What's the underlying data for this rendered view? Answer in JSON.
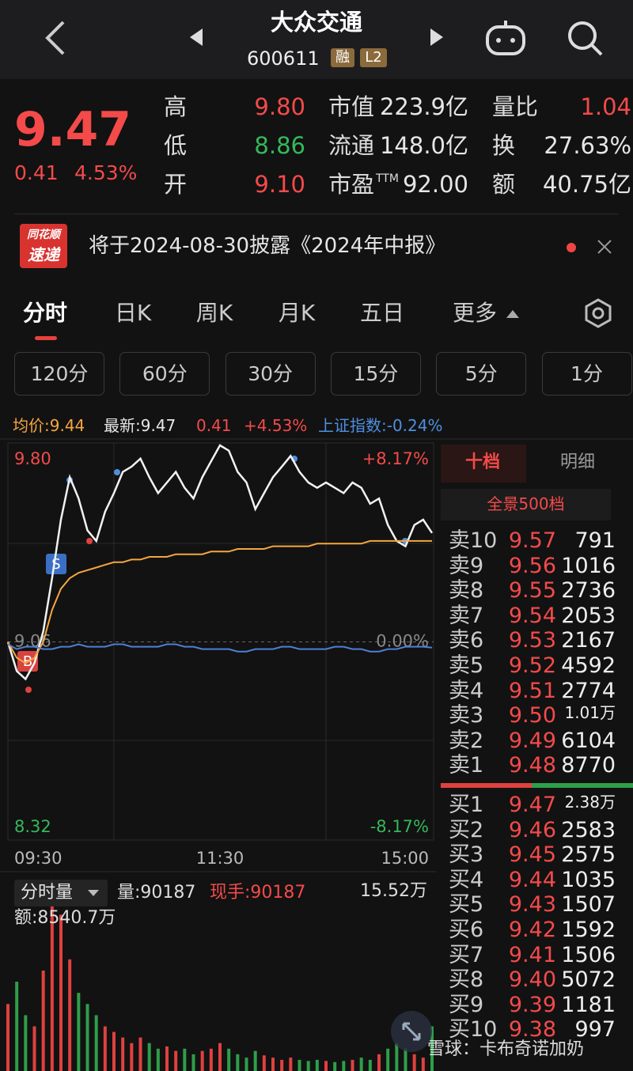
{
  "header": {
    "title": "大众交通",
    "code": "600611",
    "badges": [
      "融",
      "L2"
    ]
  },
  "quote": {
    "price": "9.47",
    "change": "0.41",
    "change_pct": "4.53%"
  },
  "stats": [
    {
      "label": "高",
      "value": "9.80",
      "color": "#f44a4a"
    },
    {
      "label": "低",
      "value": "8.86",
      "color": "#35b85a"
    },
    {
      "label": "开",
      "value": "9.10",
      "color": "#f44a4a"
    },
    {
      "label": "市值",
      "value": "223.9亿",
      "color": "#e6e6e6"
    },
    {
      "label": "流通",
      "value": "148.0亿",
      "color": "#e6e6e6"
    },
    {
      "label": "市盈",
      "sup": "TTM",
      "value": "92.00",
      "color": "#e6e6e6"
    },
    {
      "label": "量比",
      "value": "1.04",
      "color": "#f44a4a"
    },
    {
      "label": "换",
      "value": "27.63%",
      "color": "#e6e6e6"
    },
    {
      "label": "额",
      "value": "40.75亿",
      "color": "#e6e6e6"
    }
  ],
  "notice": {
    "logo_top": "同花顺",
    "logo_bottom": "速递",
    "text": "将于2024-08-30披露《2024年中报》"
  },
  "tabs": [
    "分时",
    "日K",
    "周K",
    "月K",
    "五日",
    "更多"
  ],
  "periods": [
    "120分",
    "60分",
    "30分",
    "15分",
    "5分",
    "1分"
  ],
  "info_bar": {
    "avg": "均价:9.44",
    "latest": "最新:9.47",
    "change": "0.41",
    "change_pct": "+4.53%",
    "index": "上证指数:-0.24%"
  },
  "chart_data": [
    {
      "type": "line",
      "x": [
        0,
        5,
        10,
        15,
        20,
        25,
        30,
        35,
        40,
        45,
        50,
        55,
        60,
        65,
        70,
        75,
        80,
        85,
        90,
        95,
        100,
        105,
        110,
        115,
        120,
        125,
        130,
        135,
        140,
        145,
        150,
        155,
        160,
        165,
        170,
        175,
        180,
        185,
        190,
        195,
        200,
        205,
        210,
        215,
        220,
        225,
        230,
        235,
        240
      ],
      "xlim": [
        0,
        240
      ],
      "xticks": [
        {
          "value": 0,
          "label": "09:30"
        },
        {
          "value": 120,
          "label": "11:30"
        },
        {
          "value": 240,
          "label": "15:00"
        }
      ],
      "ylim": [
        8.32,
        9.8
      ],
      "yticks": [
        {
          "value": 9.8,
          "label": "9.80"
        },
        {
          "value": 9.06,
          "label": "9.06"
        },
        {
          "value": 8.32,
          "label": "8.32"
        }
      ],
      "y2lim": [
        -8.17,
        8.17
      ],
      "y2ticks": [
        {
          "value": 8.17,
          "label": "+8.17%"
        },
        {
          "value": 0,
          "label": "0.00%"
        },
        {
          "value": -8.17,
          "label": "-8.17%"
        }
      ],
      "series": [
        {
          "color": "#f2f2f2",
          "values": [
            9.06,
            8.95,
            8.92,
            8.98,
            9.1,
            9.3,
            9.52,
            9.68,
            9.6,
            9.48,
            9.44,
            9.55,
            9.62,
            9.7,
            9.72,
            9.75,
            9.68,
            9.62,
            9.66,
            9.7,
            9.64,
            9.6,
            9.68,
            9.74,
            9.8,
            9.78,
            9.7,
            9.66,
            9.56,
            9.62,
            9.68,
            9.72,
            9.76,
            9.7,
            9.66,
            9.64,
            9.66,
            9.64,
            9.62,
            9.66,
            9.64,
            9.58,
            9.6,
            9.5,
            9.44,
            9.42,
            9.5,
            9.52,
            9.47
          ]
        },
        {
          "color": "#f5a640",
          "values": [
            9.06,
            9.0,
            8.98,
            9.0,
            9.06,
            9.18,
            9.26,
            9.3,
            9.32,
            9.33,
            9.34,
            9.35,
            9.36,
            9.36,
            9.37,
            9.37,
            9.38,
            9.38,
            9.38,
            9.39,
            9.39,
            9.39,
            9.39,
            9.4,
            9.4,
            9.4,
            9.41,
            9.41,
            9.41,
            9.41,
            9.42,
            9.42,
            9.42,
            9.42,
            9.42,
            9.43,
            9.43,
            9.43,
            9.43,
            9.43,
            9.43,
            9.44,
            9.44,
            9.44,
            9.44,
            9.44,
            9.44,
            9.44,
            9.44
          ]
        },
        {
          "color": "#4d7fd6",
          "axis": "y2",
          "values": [
            -0.1,
            -0.3,
            -0.2,
            -0.2,
            -0.3,
            -0.3,
            -0.2,
            -0.2,
            -0.1,
            -0.2,
            -0.2,
            -0.2,
            -0.1,
            -0.1,
            -0.2,
            -0.2,
            -0.2,
            -0.2,
            -0.1,
            -0.1,
            -0.2,
            -0.2,
            -0.3,
            -0.3,
            -0.3,
            -0.3,
            -0.4,
            -0.4,
            -0.3,
            -0.3,
            -0.3,
            -0.2,
            -0.2,
            -0.3,
            -0.3,
            -0.3,
            -0.3,
            -0.2,
            -0.2,
            -0.3,
            -0.3,
            -0.4,
            -0.4,
            -0.3,
            -0.3,
            -0.2,
            -0.2,
            -0.2,
            -0.24
          ]
        }
      ]
    },
    {
      "type": "bar",
      "title": "分时量",
      "volume": "量:90187",
      "current": "现手:90187",
      "amount": "额:8540.7万",
      "x": [
        0,
        5,
        10,
        15,
        20,
        25,
        30,
        35,
        40,
        45,
        50,
        55,
        60,
        65,
        70,
        75,
        80,
        85,
        90,
        95,
        100,
        105,
        110,
        115,
        120,
        125,
        130,
        135,
        140,
        145,
        150,
        155,
        160,
        165,
        170,
        175,
        180,
        185,
        190,
        195,
        200,
        205,
        210,
        215,
        220,
        225,
        230,
        235,
        240
      ],
      "xlim": [
        0,
        240
      ],
      "ylim": [
        0,
        155200
      ],
      "yticks": [
        {
          "value": 155200,
          "label": "15.52万"
        }
      ],
      "up_color": "#e0413f",
      "down_color": "#2f9e4a",
      "values": [
        60000,
        80000,
        50000,
        40000,
        90000,
        155200,
        140000,
        100000,
        70000,
        60000,
        50000,
        40000,
        35000,
        30000,
        25000,
        30000,
        25000,
        20000,
        22000,
        18000,
        20000,
        15000,
        18000,
        20000,
        25000,
        20000,
        15000,
        12000,
        18000,
        14000,
        12000,
        10000,
        12000,
        10000,
        9000,
        10000,
        9000,
        8000,
        9000,
        10000,
        12000,
        10000,
        15000,
        20000,
        25000,
        20000,
        15000,
        12000,
        40000
      ]
    }
  ],
  "order_book": {
    "tabs": [
      "十档",
      "明细"
    ],
    "depth": "全景500档",
    "asks": [
      {
        "label": "卖10",
        "price": "9.57",
        "volume": "791"
      },
      {
        "label": "卖9",
        "price": "9.56",
        "volume": "1016"
      },
      {
        "label": "卖8",
        "price": "9.55",
        "volume": "2736"
      },
      {
        "label": "卖7",
        "price": "9.54",
        "volume": "2053"
      },
      {
        "label": "卖6",
        "price": "9.53",
        "volume": "2167"
      },
      {
        "label": "卖5",
        "price": "9.52",
        "volume": "4592"
      },
      {
        "label": "卖4",
        "price": "9.51",
        "volume": "2774"
      },
      {
        "label": "卖3",
        "price": "9.50",
        "volume": "1.01万"
      },
      {
        "label": "卖2",
        "price": "9.49",
        "volume": "6104"
      },
      {
        "label": "卖1",
        "price": "9.48",
        "volume": "8770"
      }
    ],
    "bids": [
      {
        "label": "买1",
        "price": "9.47",
        "volume": "2.38万"
      },
      {
        "label": "买2",
        "price": "9.46",
        "volume": "2583"
      },
      {
        "label": "买3",
        "price": "9.45",
        "volume": "2575"
      },
      {
        "label": "买4",
        "price": "9.44",
        "volume": "1035"
      },
      {
        "label": "买5",
        "price": "9.43",
        "volume": "1507"
      },
      {
        "label": "买6",
        "price": "9.42",
        "volume": "1592"
      },
      {
        "label": "买7",
        "price": "9.41",
        "volume": "1506"
      },
      {
        "label": "买8",
        "price": "9.40",
        "volume": "5072"
      },
      {
        "label": "买9",
        "price": "9.39",
        "volume": "1181"
      },
      {
        "label": "买10",
        "price": "9.38",
        "volume": "997"
      }
    ]
  },
  "watermark": "雪球：卡布奇诺加奶"
}
